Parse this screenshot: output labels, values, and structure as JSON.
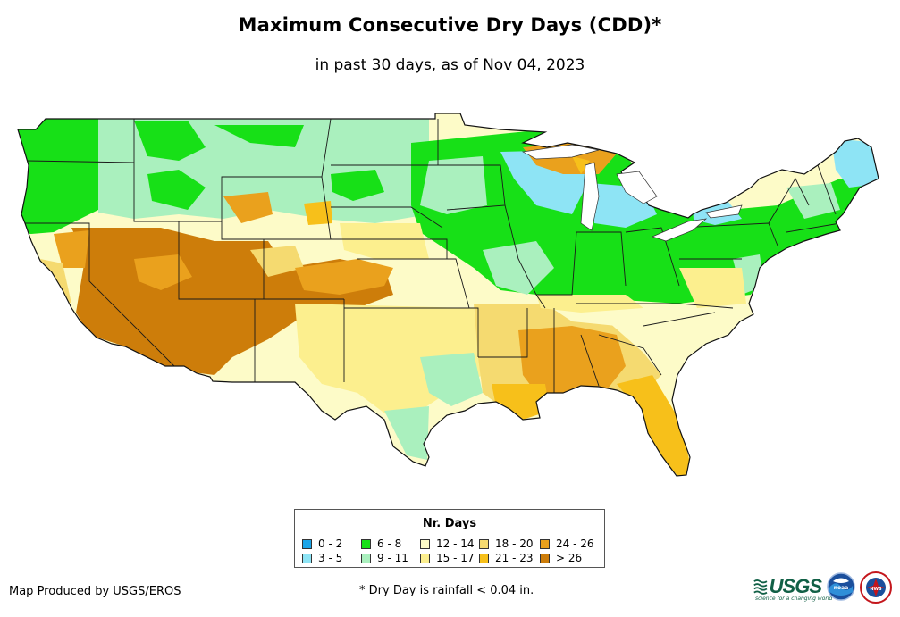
{
  "title": "Maximum Consecutive Dry Days (CDD)*",
  "subtitle": "in past 30 days, as of Nov 04, 2023",
  "legend": {
    "title": "Nr. Days",
    "items": [
      {
        "label": "0 - 2",
        "color": "#1ca5e8"
      },
      {
        "label": "3 - 5",
        "color": "#8ee4f5"
      },
      {
        "label": "6 - 8",
        "color": "#17e017"
      },
      {
        "label": "9 - 11",
        "color": "#aaf0be"
      },
      {
        "label": "12 - 14",
        "color": "#fdfbc8"
      },
      {
        "label": "15 - 17",
        "color": "#fcef8e"
      },
      {
        "label": "18 - 20",
        "color": "#f5da70"
      },
      {
        "label": "21 - 23",
        "color": "#f7c01a"
      },
      {
        "label": "24 - 26",
        "color": "#eaa11d"
      },
      {
        "label": "> 26",
        "color": "#cd7d0a"
      }
    ]
  },
  "credit": "Map Produced by USGS/EROS",
  "footnote": "* Dry Day is rainfall < 0.04 in.",
  "logos": {
    "usgs_text": "USGS",
    "usgs_tagline": "science for a changing world",
    "noaa_text": "noaa",
    "nws_text": "NWS"
  }
}
